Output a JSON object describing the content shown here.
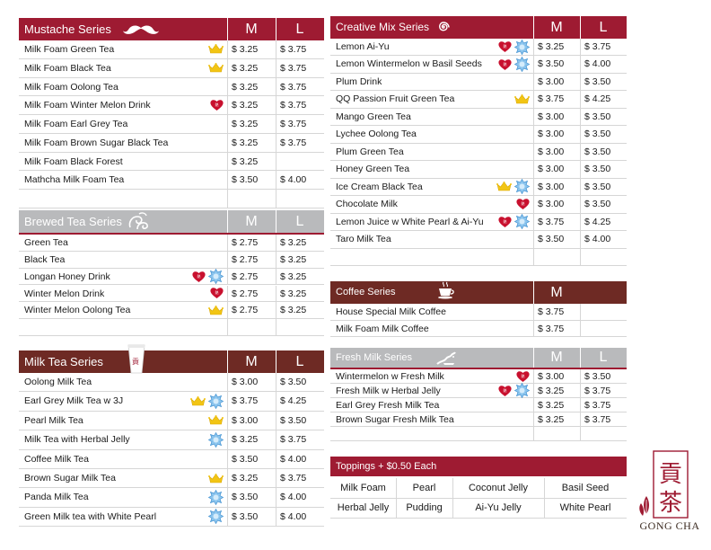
{
  "currency": "$",
  "mustache": {
    "title": "Mustache Series",
    "m": "M",
    "l": "L",
    "items": [
      {
        "name": "Milk Foam Green Tea",
        "m": "3.25",
        "l": "3.75",
        "icons": [
          "crown"
        ]
      },
      {
        "name": "Milk Foam Black Tea",
        "m": "3.25",
        "l": "3.75",
        "icons": [
          "crown"
        ]
      },
      {
        "name": "Milk Foam Oolong Tea",
        "m": "3.25",
        "l": "3.75",
        "icons": []
      },
      {
        "name": "Milk Foam Winter Melon Drink",
        "m": "3.25",
        "l": "3.75",
        "icons": [
          "heart"
        ]
      },
      {
        "name": "Milk Foam Earl Grey Tea",
        "m": "3.25",
        "l": "3.75",
        "icons": []
      },
      {
        "name": "Milk Foam Brown Sugar Black Tea",
        "m": "3.25",
        "l": "3.75",
        "icons": []
      },
      {
        "name": "Milk Foam Black Forest",
        "m": "3.25",
        "l": "",
        "icons": []
      },
      {
        "name": "Mathcha Milk Foam Tea",
        "m": "3.50",
        "l": "4.00",
        "icons": []
      }
    ]
  },
  "brewed": {
    "title": "Brewed Tea Series",
    "m": "M",
    "l": "L",
    "items": [
      {
        "name": "Green Tea",
        "m": "2.75",
        "l": "3.25",
        "icons": []
      },
      {
        "name": "Black Tea",
        "m": "2.75",
        "l": "3.25",
        "icons": []
      },
      {
        "name": "Longan Honey Drink",
        "m": "2.75",
        "l": "3.25",
        "icons": [
          "heart",
          "ice"
        ]
      },
      {
        "name": "Winter Melon Drink",
        "m": "2.75",
        "l": "3.25",
        "icons": [
          "heart"
        ]
      },
      {
        "name": "Winter Melon Oolong Tea",
        "m": "2.75",
        "l": "3.25",
        "icons": [
          "crown"
        ]
      }
    ]
  },
  "milktea": {
    "title": "Milk Tea Series",
    "m": "M",
    "l": "L",
    "items": [
      {
        "name": "Oolong Milk Tea",
        "m": "3.00",
        "l": "3.50",
        "icons": []
      },
      {
        "name": "Earl Grey Milk Tea w 3J",
        "m": "3.75",
        "l": "4.25",
        "icons": [
          "crown",
          "ice"
        ]
      },
      {
        "name": "Pearl Milk Tea",
        "m": "3.00",
        "l": "3.50",
        "icons": [
          "crown"
        ]
      },
      {
        "name": "Milk Tea with Herbal Jelly",
        "m": "3.25",
        "l": "3.75",
        "icons": [
          "ice"
        ]
      },
      {
        "name": "Coffee Milk Tea",
        "m": "3.50",
        "l": "4.00",
        "icons": []
      },
      {
        "name": "Brown Sugar Milk Tea",
        "m": "3.25",
        "l": "3.75",
        "icons": [
          "crown"
        ]
      },
      {
        "name": "Panda Milk Tea",
        "m": "3.50",
        "l": "4.00",
        "icons": [
          "ice"
        ]
      },
      {
        "name": "Green Milk tea with White Pearl",
        "m": "3.50",
        "l": "4.00",
        "icons": [
          "ice"
        ]
      }
    ]
  },
  "creative": {
    "title": "Creative Mix Series",
    "m": "M",
    "l": "L",
    "items": [
      {
        "name": "Lemon Ai-Yu",
        "m": "3.25",
        "l": "3.75",
        "icons": [
          "heart",
          "ice"
        ]
      },
      {
        "name": "Lemon Wintermelon w Basil Seeds",
        "m": "3.50",
        "l": "4.00",
        "icons": [
          "heart",
          "ice"
        ]
      },
      {
        "name": "Plum Drink",
        "m": "3.00",
        "l": "3.50",
        "icons": []
      },
      {
        "name": "QQ Passion Fruit Green Tea",
        "m": "3.75",
        "l": "4.25",
        "icons": [
          "crown"
        ]
      },
      {
        "name": "Mango Green Tea",
        "m": "3.00",
        "l": "3.50",
        "icons": []
      },
      {
        "name": "Lychee Oolong Tea",
        "m": "3.00",
        "l": "3.50",
        "icons": []
      },
      {
        "name": "Plum Green Tea",
        "m": "3.00",
        "l": "3.50",
        "icons": []
      },
      {
        "name": "Honey Green Tea",
        "m": "3.00",
        "l": "3.50",
        "icons": []
      },
      {
        "name": "Ice Cream Black Tea",
        "m": "3.00",
        "l": "3.50",
        "icons": [
          "crown",
          "ice"
        ]
      },
      {
        "name": "Chocolate Milk",
        "m": "3.00",
        "l": "3.50",
        "icons": [
          "heart"
        ]
      },
      {
        "name": "Lemon Juice w White Pearl & Ai-Yu",
        "m": "3.75",
        "l": "4.25",
        "icons": [
          "heart",
          "ice"
        ]
      },
      {
        "name": "Taro Milk Tea",
        "m": "3.50",
        "l": "4.00",
        "icons": []
      }
    ]
  },
  "coffee": {
    "title": "Coffee Series",
    "m": "M",
    "items": [
      {
        "name": "House Special Milk Coffee",
        "m": "3.75"
      },
      {
        "name": "Milk Foam Milk Coffee",
        "m": "3.75"
      }
    ]
  },
  "freshmilk": {
    "title": "Fresh Milk Series",
    "m": "M",
    "l": "L",
    "items": [
      {
        "name": "Wintermelon w Fresh Milk",
        "m": "3.00",
        "l": "3.50",
        "icons": [
          "heart"
        ]
      },
      {
        "name": "Fresh Milk w Herbal Jelly",
        "m": "3.25",
        "l": "3.75",
        "icons": [
          "heart",
          "ice"
        ]
      },
      {
        "name": "Earl Grey Fresh Milk Tea",
        "m": "3.25",
        "l": "3.75",
        "icons": []
      },
      {
        "name": "Brown Sugar Fresh Milk Tea",
        "m": "3.25",
        "l": "3.75",
        "icons": []
      }
    ]
  },
  "toppings": {
    "title": "Toppings + $0.50 Each",
    "items": [
      "Milk Foam",
      "Pearl",
      "Coconut Jelly",
      "Basil Seed",
      "Herbal Jelly",
      "Pudding",
      "Ai-Yu Jelly",
      "White Pearl"
    ]
  },
  "brand": {
    "name": "GONG CHA"
  },
  "colors": {
    "red": "#9e1b32",
    "gray": "#b9babc",
    "brown": "#6e2a24"
  }
}
